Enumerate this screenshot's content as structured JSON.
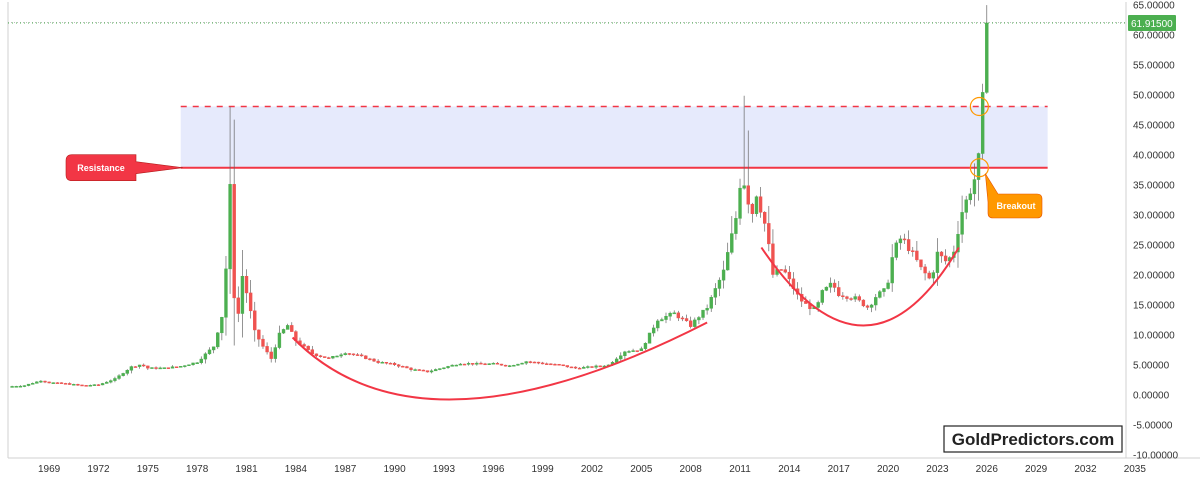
{
  "chart_data": {
    "type": "candlestick",
    "y_axis": {
      "min": -10,
      "max": 65,
      "scale": "linear",
      "tick_labels": [
        "65.00000",
        "60.00000",
        "55.00000",
        "50.00000",
        "45.00000",
        "40.00000",
        "35.00000",
        "30.00000",
        "25.00000",
        "20.00000",
        "15.00000",
        "10.00000",
        "5.00000",
        "0.00000",
        "-5.00000",
        "-10.00000"
      ],
      "tick_values": [
        65,
        60,
        55,
        50,
        45,
        40,
        35,
        30,
        25,
        20,
        15,
        10,
        5,
        0,
        -5,
        -10
      ]
    },
    "x_axis": {
      "min": 1966.5,
      "max": 2034,
      "tick_labels": [
        "1969",
        "1972",
        "1975",
        "1978",
        "1981",
        "1984",
        "1987",
        "1990",
        "1993",
        "1996",
        "1999",
        "2002",
        "2005",
        "2008",
        "2011",
        "2014",
        "2017",
        "2020",
        "2023",
        "2026",
        "2029",
        "2032",
        "2035"
      ],
      "tick_values": [
        1969,
        1972,
        1975,
        1978,
        1981,
        1984,
        1987,
        1990,
        1993,
        1996,
        1999,
        2002,
        2005,
        2008,
        2011,
        2014,
        2017,
        2020,
        2023,
        2026,
        2029,
        2032,
        2035
      ]
    },
    "series_points": [
      [
        1966.5,
        1.3
      ],
      [
        1967.5,
        1.5
      ],
      [
        1968,
        1.9
      ],
      [
        1968.5,
        2.3
      ],
      [
        1969,
        2.0
      ],
      [
        1970,
        1.8
      ],
      [
        1971,
        1.5
      ],
      [
        1972,
        1.6
      ],
      [
        1973,
        2.6
      ],
      [
        1974,
        4.6
      ],
      [
        1974.6,
        5.0
      ],
      [
        1975,
        4.4
      ],
      [
        1976,
        4.4
      ],
      [
        1977,
        4.7
      ],
      [
        1978,
        5.4
      ],
      [
        1979,
        8.0
      ],
      [
        1979.6,
        14.0
      ],
      [
        1979.9,
        28.0
      ],
      [
        1980.05,
        37.5
      ],
      [
        1980.2,
        17.0
      ],
      [
        1980.5,
        13.5
      ],
      [
        1980.8,
        21.0
      ],
      [
        1981,
        17.0
      ],
      [
        1981.5,
        10.5
      ],
      [
        1982,
        8.0
      ],
      [
        1982.5,
        6.0
      ],
      [
        1983,
        10.0
      ],
      [
        1983.5,
        11.5
      ],
      [
        1984,
        9.0
      ],
      [
        1985,
        6.8
      ],
      [
        1986,
        6.0
      ],
      [
        1987,
        7.0
      ],
      [
        1988,
        6.3
      ],
      [
        1989,
        5.4
      ],
      [
        1990,
        5.0
      ],
      [
        1991,
        4.2
      ],
      [
        1992,
        3.8
      ],
      [
        1993,
        4.5
      ],
      [
        1994,
        5.2
      ],
      [
        1995,
        5.1
      ],
      [
        1996,
        5.1
      ],
      [
        1997,
        4.8
      ],
      [
        1998,
        5.5
      ],
      [
        1999,
        5.2
      ],
      [
        2000,
        4.9
      ],
      [
        2001,
        4.4
      ],
      [
        2002,
        4.6
      ],
      [
        2003,
        4.9
      ],
      [
        2004,
        7.2
      ],
      [
        2005,
        7.5
      ],
      [
        2006,
        12.5
      ],
      [
        2007,
        13.5
      ],
      [
        2008,
        11.5
      ],
      [
        2009,
        14.5
      ],
      [
        2010,
        20.5
      ],
      [
        2010.8,
        30.0
      ],
      [
        2011.1,
        37.5
      ],
      [
        2011.4,
        33.0
      ],
      [
        2011.8,
        30.0
      ],
      [
        2012,
        33.5
      ],
      [
        2012.6,
        27.5
      ],
      [
        2013,
        20.0
      ],
      [
        2013.6,
        21.0
      ],
      [
        2014,
        19.0
      ],
      [
        2014.6,
        16.0
      ],
      [
        2015,
        15.0
      ],
      [
        2015.6,
        14.0
      ],
      [
        2016,
        17.0
      ],
      [
        2016.6,
        18.5
      ],
      [
        2017,
        16.8
      ],
      [
        2018,
        16.0
      ],
      [
        2018.8,
        14.5
      ],
      [
        2019.3,
        16.5
      ],
      [
        2019.9,
        17.5
      ],
      [
        2020.3,
        23.5
      ],
      [
        2020.7,
        26.0
      ],
      [
        2021,
        25.5
      ],
      [
        2021.6,
        23.0
      ],
      [
        2022,
        21.0
      ],
      [
        2022.6,
        19.0
      ],
      [
        2023,
        23.5
      ],
      [
        2023.6,
        22.0
      ],
      [
        2024,
        24.0
      ],
      [
        2024.5,
        30.5
      ],
      [
        2025,
        34.0
      ],
      [
        2025.4,
        37.0
      ],
      [
        2025.7,
        46.5
      ],
      [
        2025.9,
        61.9
      ]
    ],
    "current_price": {
      "value": 61.915,
      "label": "61.91500"
    },
    "resistance_level": 37.8,
    "upper_level": 48.0,
    "shaded_zone": {
      "from_value": 37.8,
      "to_value": 48.0,
      "x_start": 1977,
      "x_end": 2029.7
    },
    "cup_curves": [
      {
        "from": [
          1983.8,
          9.5
        ],
        "bottom": [
          1994,
          -0.8
        ],
        "to": [
          2009,
          12.0
        ]
      },
      {
        "from": [
          2012.3,
          24.5
        ],
        "bottom": [
          2018.5,
          11.5
        ],
        "to": [
          2024.3,
          24.5
        ]
      }
    ],
    "breakout_circles": [
      [
        2025.55,
        37.8
      ],
      [
        2025.55,
        48.0
      ]
    ],
    "annotations": [
      {
        "id": "resistance",
        "text": "Resistance",
        "color": "#f23645"
      },
      {
        "id": "breakout",
        "text": "Breakout",
        "color": "#ff9800"
      }
    ],
    "colors": {
      "up": "#4caf50",
      "down": "#ef5350",
      "resistance_line": "#f23645",
      "zone_fill": "#e6eafc",
      "curve": "#f23645",
      "price_tag": "#4caf50",
      "grid": "#c8c8c8"
    },
    "watermark": "GoldPredictors.com"
  }
}
